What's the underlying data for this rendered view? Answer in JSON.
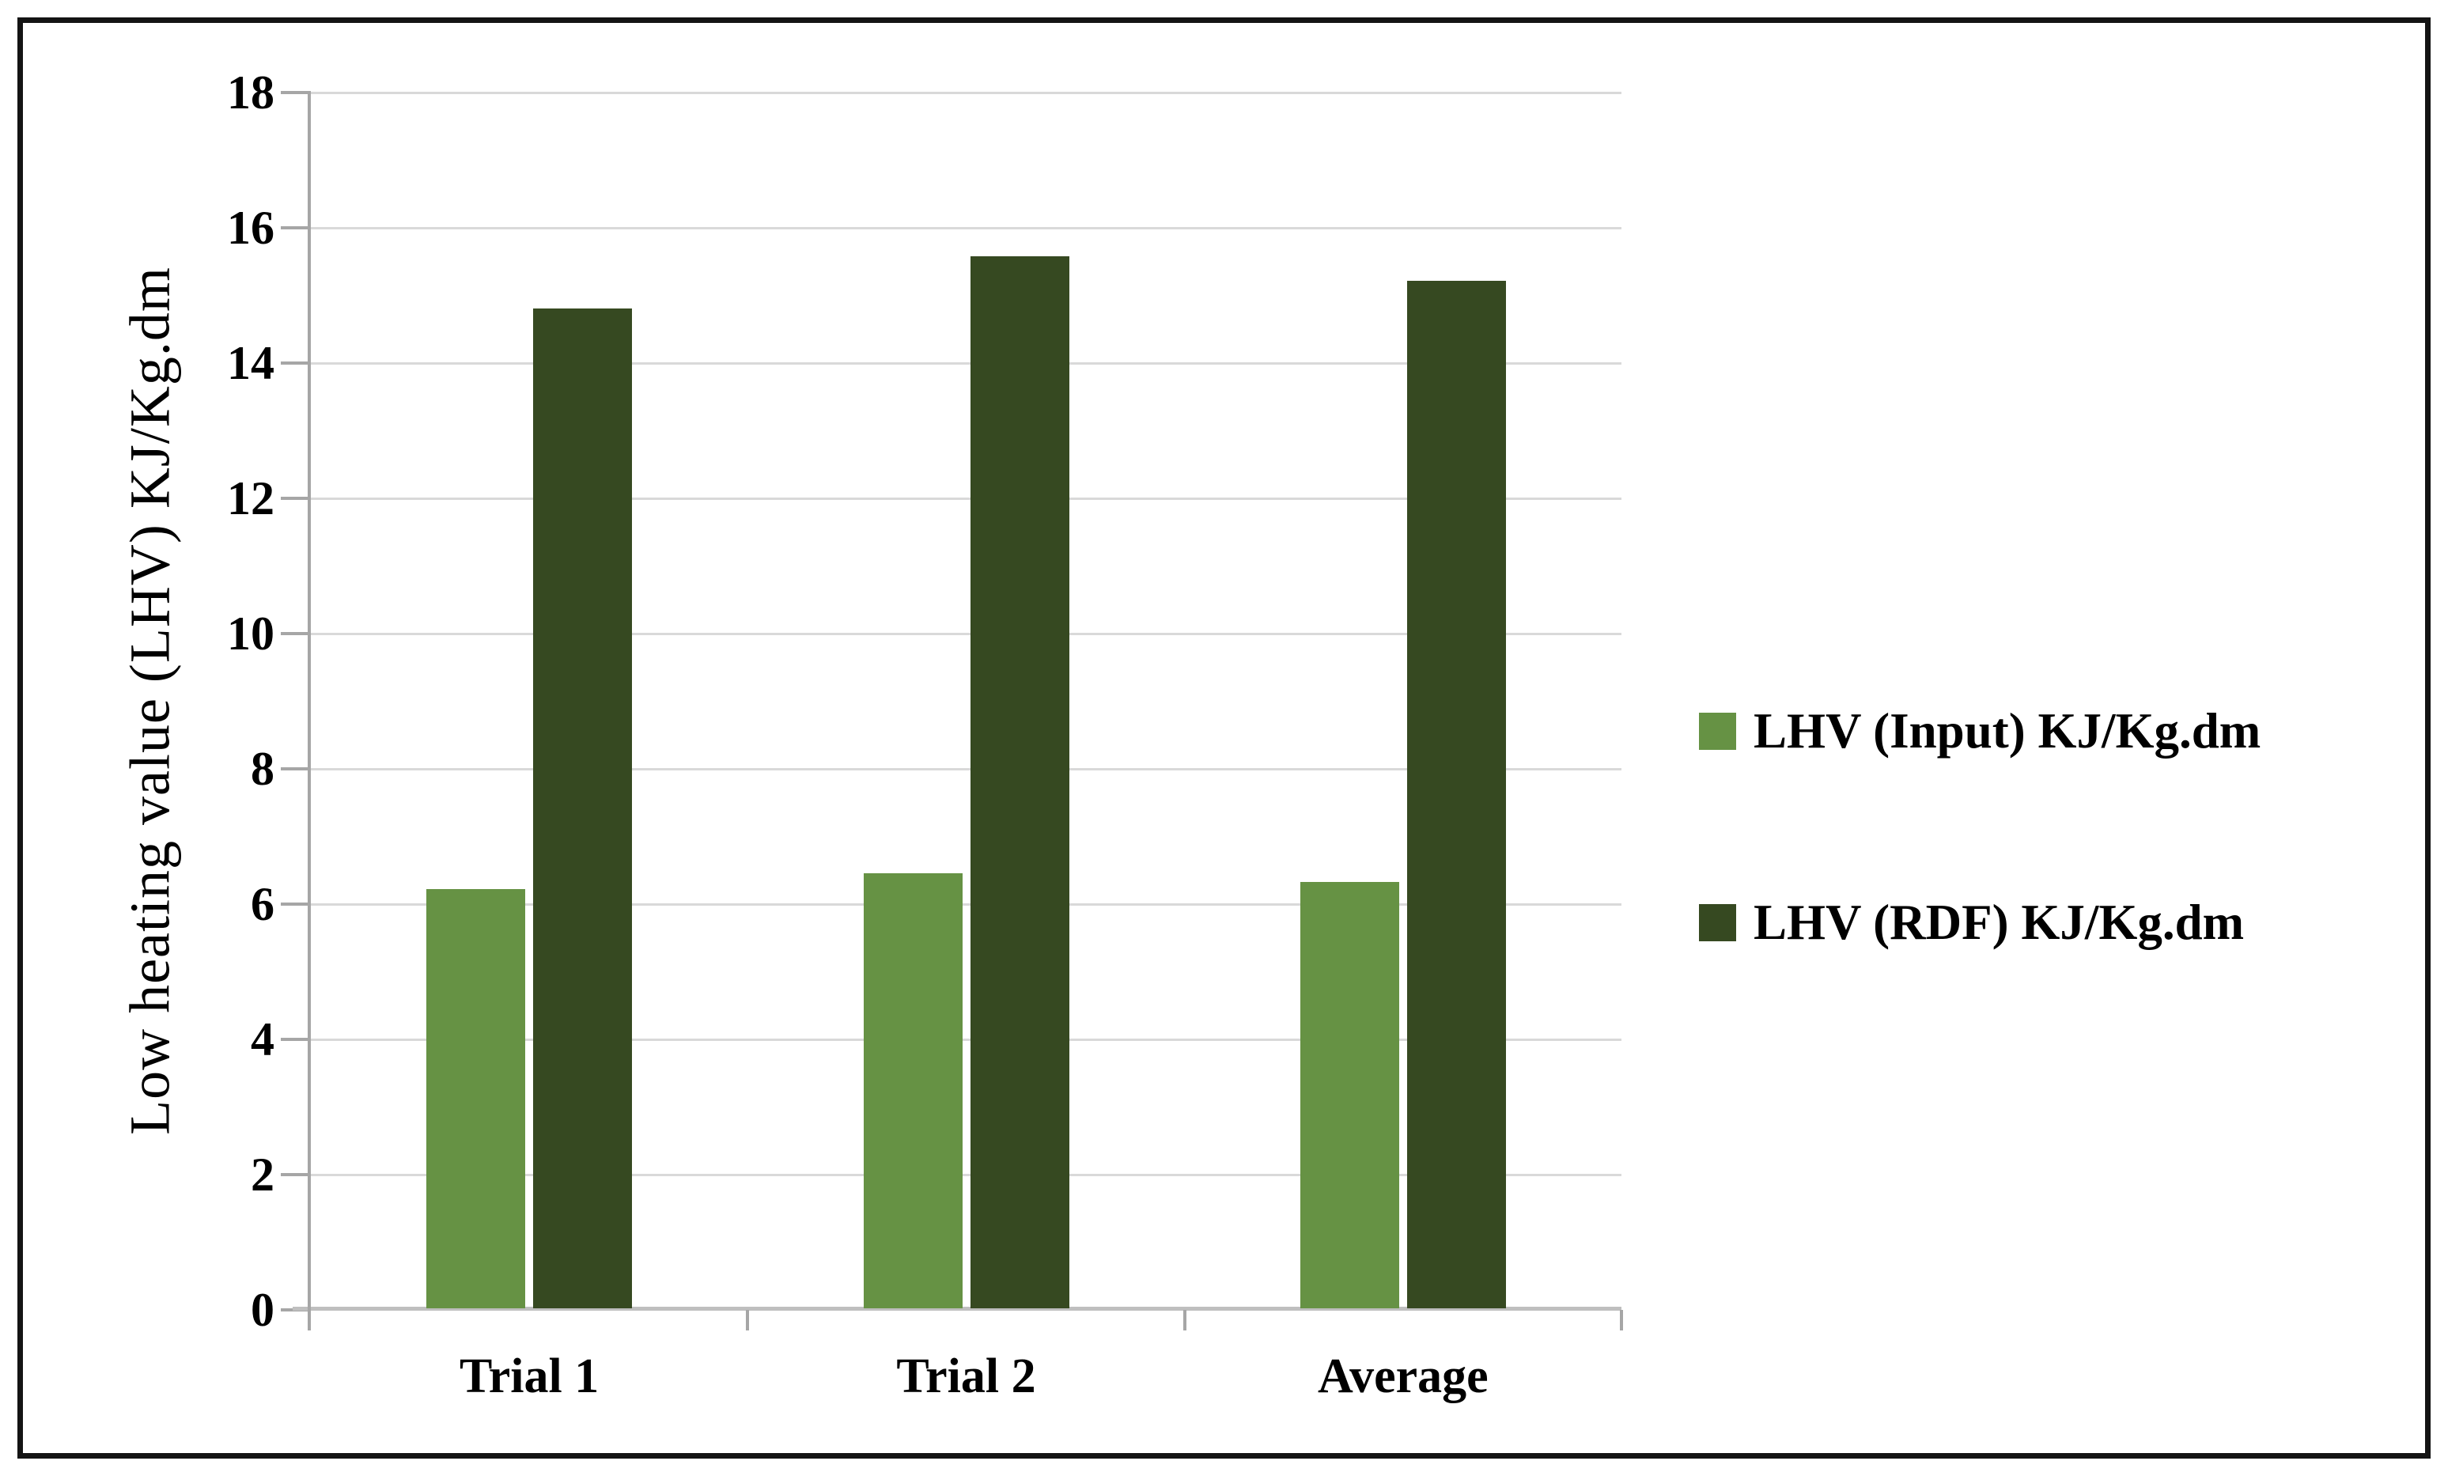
{
  "chart_data": {
    "type": "bar",
    "categories": [
      "Trial 1",
      "Trial 2",
      "Average"
    ],
    "series": [
      {
        "name": "LHV (Input) KJ/Kg.dm",
        "values": [
          6.2,
          6.43,
          6.31
        ],
        "color": "#669244"
      },
      {
        "name": "LHV (RDF) KJ/Kg.dm",
        "values": [
          14.78,
          15.55,
          15.19
        ],
        "color": "#364921"
      }
    ],
    "ylabel": "Low heating value (LHV) KJ/Kg.dm",
    "ylim": [
      0,
      18
    ],
    "ytick_step": 2,
    "yticks": [
      0,
      2,
      4,
      6,
      8,
      10,
      12,
      14,
      16,
      18
    ],
    "grid": true,
    "legend_position": "right",
    "colors": {
      "gridline": "#D9D9D9",
      "axis_line": "#A6A6A6",
      "baseline": "#BFBFBF",
      "frame_border": "#141414",
      "text": "#000000",
      "background": "#FFFFFF"
    }
  }
}
